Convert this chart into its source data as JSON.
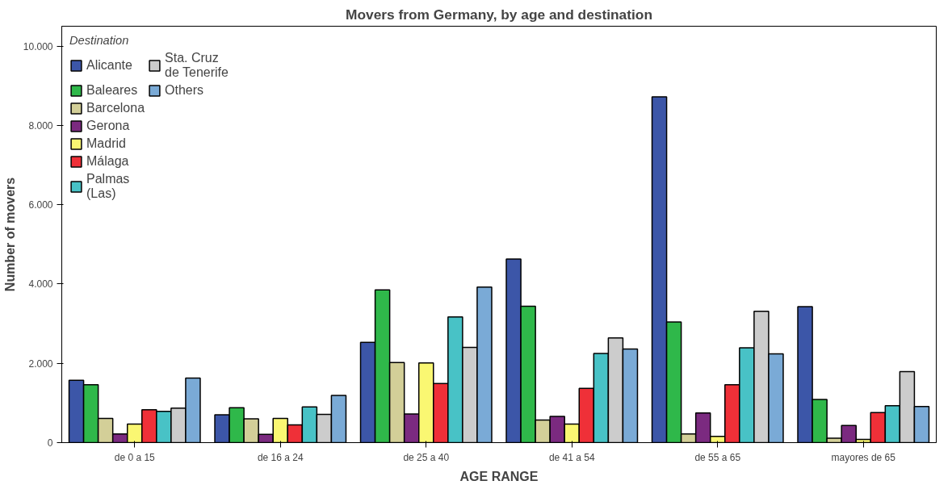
{
  "chart_data": {
    "type": "bar",
    "title": "Movers from Germany, by age and destination",
    "xlabel": "AGE RANGE",
    "ylabel": "Number of movers",
    "legend_title": "Destination",
    "categories": [
      "de 0 a 15",
      "de 16 a 24",
      "de 25 a 40",
      "de 41 a 54",
      "de 55 a 65",
      "mayores de 65"
    ],
    "series": [
      {
        "name": "Alicante",
        "color": "#3c56a8",
        "values": [
          1570,
          700,
          2530,
          4630,
          8720,
          3430
        ]
      },
      {
        "name": "Baleares",
        "color": "#2fb84a",
        "values": [
          1460,
          880,
          3850,
          3440,
          3040,
          1090
        ]
      },
      {
        "name": "Barcelona",
        "color": "#d3cf98",
        "values": [
          610,
          600,
          2020,
          570,
          220,
          110
        ]
      },
      {
        "name": "Gerona",
        "color": "#7b2a80",
        "values": [
          220,
          210,
          720,
          660,
          750,
          430
        ]
      },
      {
        "name": "Madrid",
        "color": "#faf772",
        "values": [
          470,
          610,
          2010,
          470,
          160,
          80
        ]
      },
      {
        "name": "Málaga",
        "color": "#ef3038",
        "values": [
          830,
          450,
          1490,
          1370,
          1460,
          760
        ]
      },
      {
        "name": "Palmas (Las)",
        "color": "#48c2c6",
        "values": [
          790,
          900,
          3170,
          2250,
          2390,
          930
        ]
      },
      {
        "name": "Sta. Cruz de Tenerife",
        "color": "#cccccc",
        "values": [
          870,
          710,
          2400,
          2640,
          3310,
          1790
        ]
      },
      {
        "name": "Others",
        "color": "#7aaad6",
        "values": [
          1630,
          1190,
          3920,
          2360,
          2240,
          910
        ]
      }
    ],
    "ylim": [
      0,
      10500
    ],
    "yticks": [
      0,
      {
        "value": 2000,
        "label": "2.000"
      },
      {
        "value": 4000,
        "label": "4.000"
      },
      {
        "value": 6000,
        "label": "6.000"
      },
      {
        "value": 8000,
        "label": "8.000"
      },
      {
        "value": 10000,
        "label": "10.000"
      }
    ],
    "grid": false,
    "legend": "top left"
  }
}
